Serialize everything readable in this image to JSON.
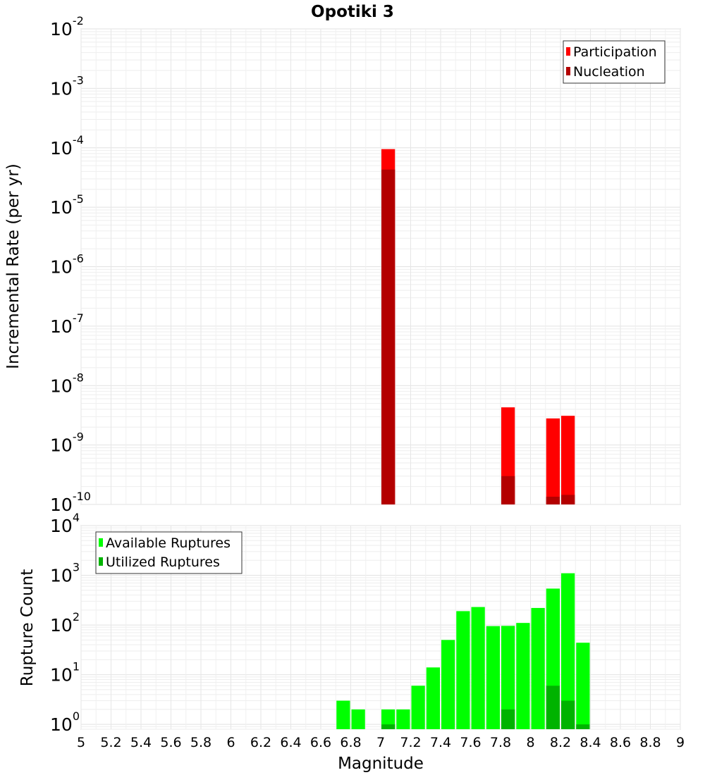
{
  "chart_data": [
    {
      "type": "bar",
      "title": "Opotiki 3",
      "xlabel": "",
      "ylabel": "Incremental Rate (per yr)",
      "yscale": "log",
      "ylim": [
        1e-10,
        0.01
      ],
      "xlim": [
        5,
        9
      ],
      "grid": true,
      "legend_position": "top-right",
      "yticks": [
        {
          "base": "10",
          "exp": "-2"
        },
        {
          "base": "10",
          "exp": "-3"
        },
        {
          "base": "10",
          "exp": "-4"
        },
        {
          "base": "10",
          "exp": "-5"
        },
        {
          "base": "10",
          "exp": "-6"
        },
        {
          "base": "10",
          "exp": "-7"
        },
        {
          "base": "10",
          "exp": "-8"
        },
        {
          "base": "10",
          "exp": "-9"
        },
        {
          "base": "10",
          "exp": "-10"
        }
      ],
      "series": [
        {
          "name": "Participation",
          "color": "#ff0000",
          "points": [
            [
              7.05,
              9.5e-05
            ],
            [
              7.85,
              4.3e-09
            ],
            [
              8.15,
              2.8e-09
            ],
            [
              8.25,
              3.1e-09
            ]
          ]
        },
        {
          "name": "Nucleation",
          "color": "#b30000",
          "points": [
            [
              7.05,
              4.3e-05
            ],
            [
              7.85,
              3e-10
            ],
            [
              8.15,
              1.35e-10
            ],
            [
              8.25,
              1.45e-10
            ]
          ]
        }
      ]
    },
    {
      "type": "bar",
      "title": "",
      "xlabel": "Magnitude",
      "ylabel": "Rupture Count",
      "yscale": "log",
      "ylim": [
        0.8,
        10000
      ],
      "xlim": [
        5,
        9
      ],
      "grid": true,
      "legend_position": "top-left",
      "xticks": [
        "5",
        "5.2",
        "5.4",
        "5.6",
        "5.8",
        "6",
        "6.2",
        "6.4",
        "6.6",
        "6.8",
        "7",
        "7.2",
        "7.4",
        "7.6",
        "7.8",
        "8",
        "8.2",
        "8.4",
        "8.6",
        "8.8",
        "9"
      ],
      "yticks": [
        {
          "base": "10",
          "exp": "0"
        },
        {
          "base": "10",
          "exp": "1"
        },
        {
          "base": "10",
          "exp": "2"
        },
        {
          "base": "10",
          "exp": "3"
        },
        {
          "base": "10",
          "exp": "4"
        }
      ],
      "series": [
        {
          "name": "Available Ruptures",
          "color": "#00ff00",
          "points": [
            [
              6.75,
              3
            ],
            [
              6.85,
              2
            ],
            [
              7.05,
              2
            ],
            [
              7.15,
              2
            ],
            [
              7.25,
              6
            ],
            [
              7.35,
              14
            ],
            [
              7.45,
              50
            ],
            [
              7.55,
              190
            ],
            [
              7.65,
              230
            ],
            [
              7.75,
              95
            ],
            [
              7.85,
              96
            ],
            [
              7.95,
              110
            ],
            [
              8.05,
              220
            ],
            [
              8.15,
              540
            ],
            [
              8.25,
              1100
            ],
            [
              8.35,
              44
            ]
          ]
        },
        {
          "name": "Utilized Ruptures",
          "color": "#00b300",
          "points": [
            [
              7.05,
              1
            ],
            [
              7.85,
              2
            ],
            [
              8.15,
              6
            ],
            [
              8.25,
              3
            ],
            [
              8.35,
              1
            ]
          ]
        }
      ]
    }
  ]
}
